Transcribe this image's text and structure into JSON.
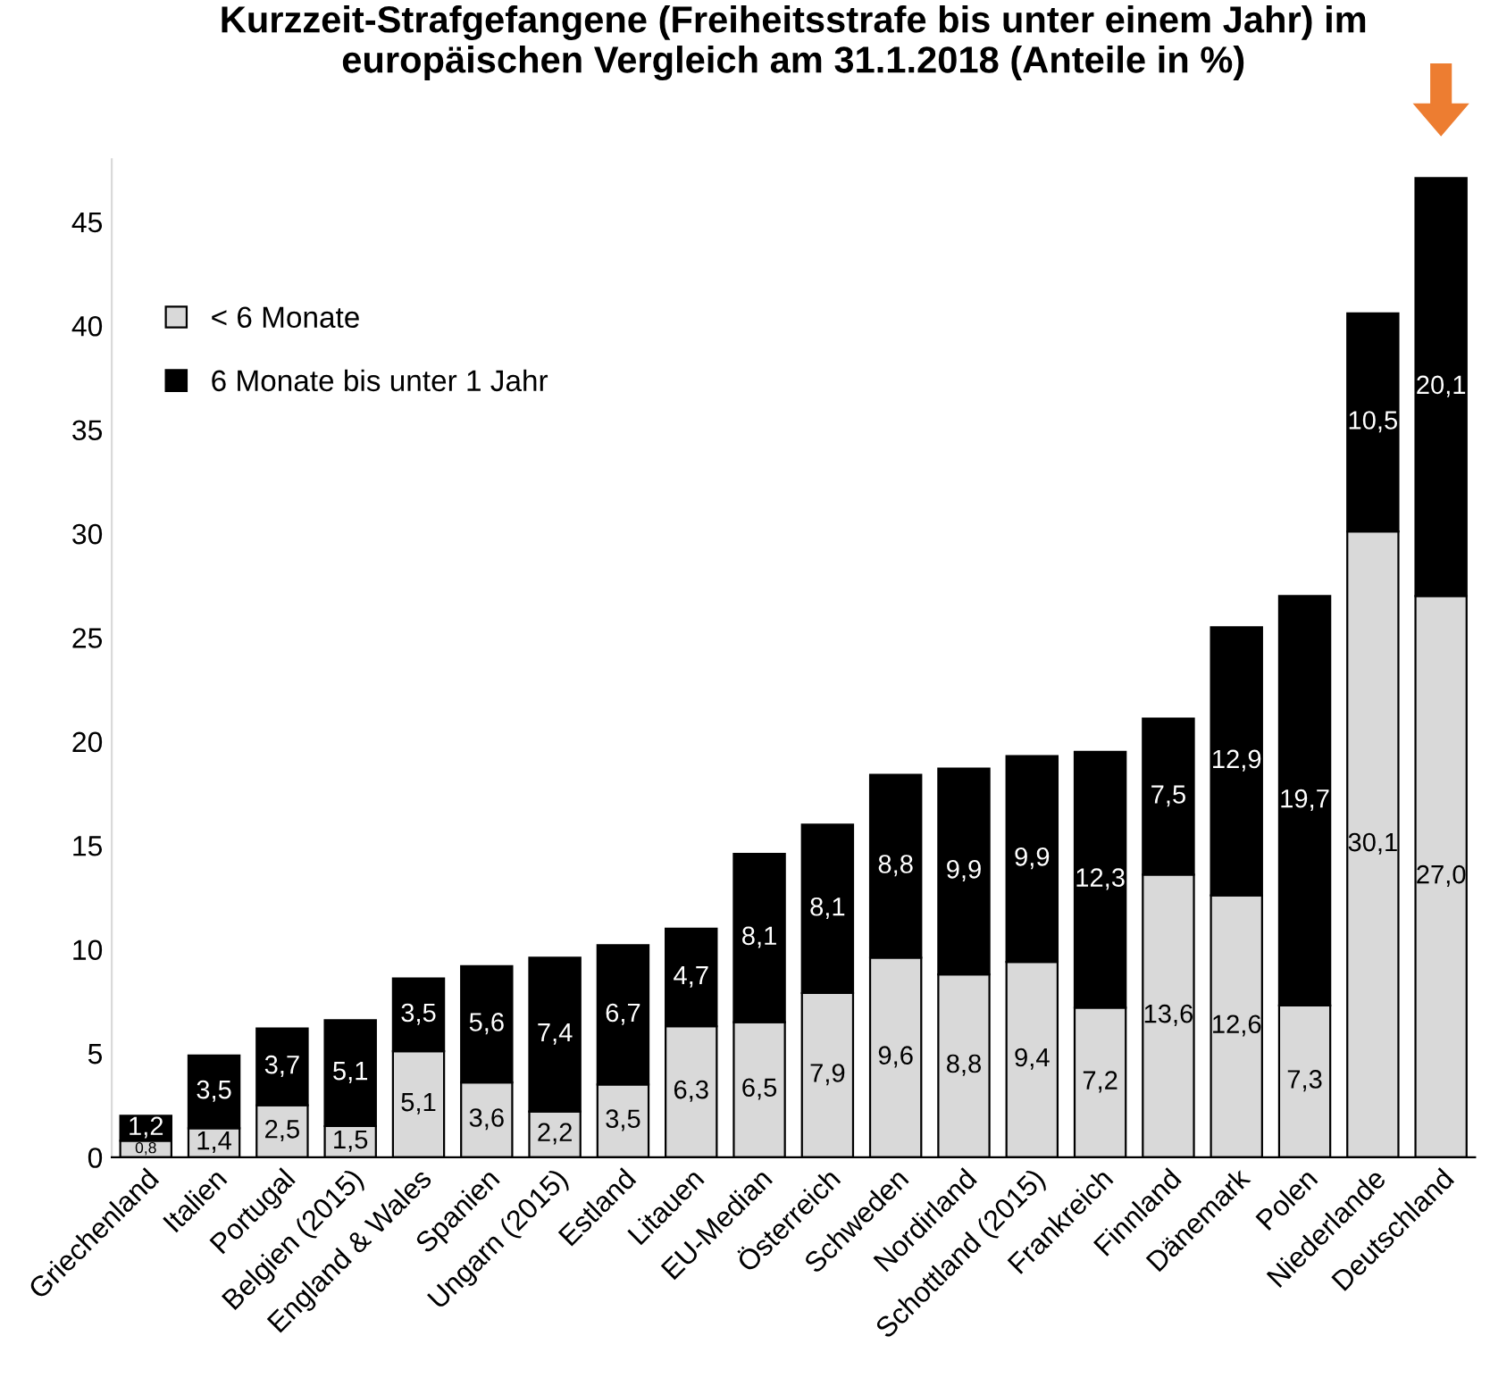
{
  "chart_data": {
    "type": "bar",
    "title": "Kurzzeit-Strafgefangene (Freiheitsstrafe bis unter einem Jahr) im\neuropäischen Vergleich am 31.1.2018 (Anteile in %)",
    "categories": [
      "Griechenland",
      "Italien",
      "Portugal",
      "Belgien (2015)",
      "England & Wales",
      "Spanien",
      "Ungarn (2015)",
      "Estland",
      "Litauen",
      "EU-Median",
      "Österreich",
      "Schweden",
      "Nordirland",
      "Schottland (2015)",
      "Frankreich",
      "Finnland",
      "Dänemark",
      "Polen",
      "Niederlande",
      "Deutschland"
    ],
    "stacked": true,
    "series": [
      {
        "name": "< 6 Monate",
        "color": "#d9d9d9",
        "values": [
          0.8,
          1.4,
          2.5,
          1.5,
          5.1,
          3.6,
          2.2,
          3.5,
          6.3,
          6.5,
          7.9,
          9.6,
          8.8,
          9.4,
          7.2,
          13.6,
          12.6,
          7.3,
          30.1,
          27.0
        ],
        "value_labels": [
          "0,8",
          "1,4",
          "2,5",
          "1,5",
          "5,1",
          "3,6",
          "2,2",
          "3,5",
          "6,3",
          "6,5",
          "7,9",
          "9,6",
          "8,8",
          "9,4",
          "7,2",
          "13,6",
          "12,6",
          "7,3",
          "30,1",
          "27,0"
        ]
      },
      {
        "name": "6 Monate bis unter 1 Jahr",
        "color": "#000000",
        "values": [
          1.2,
          3.5,
          3.7,
          5.1,
          3.5,
          5.6,
          7.4,
          6.7,
          4.7,
          8.1,
          8.1,
          8.8,
          9.9,
          9.9,
          12.3,
          7.5,
          12.9,
          19.7,
          10.5,
          20.1
        ],
        "value_labels": [
          "1,2",
          "3,5",
          "3,7",
          "5,1",
          "3,5",
          "5,6",
          "7,4",
          "6,7",
          "4,7",
          "8,1",
          "8,1",
          "8,8",
          "9,9",
          "9,9",
          "12,3",
          "7,5",
          "12,9",
          "19,7",
          "10,5",
          "20,1"
        ]
      }
    ],
    "ylim": [
      0,
      48
    ],
    "yticks": [
      0,
      5,
      10,
      15,
      20,
      25,
      30,
      35,
      40,
      45
    ],
    "grid": false,
    "legend": "top left"
  }
}
